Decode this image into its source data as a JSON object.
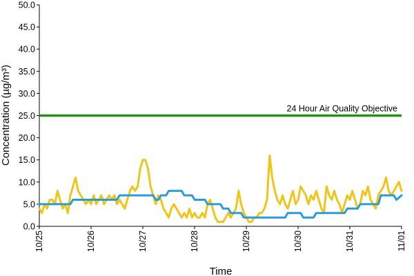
{
  "chart_data": {
    "type": "line",
    "title": "",
    "xlabel": "Time",
    "ylabel": "Concentration (µg/m³)",
    "ylim": [
      0,
      50
    ],
    "yticks": [
      "0.0",
      "5.0",
      "10.0",
      "15.0",
      "20.0",
      "25.0",
      "30.0",
      "35.0",
      "40.0",
      "45.0",
      "50.0"
    ],
    "xlim": [
      0,
      7
    ],
    "xticks": [
      "10/25",
      "10/26",
      "10/27",
      "10/28",
      "10/29",
      "10/30",
      "10/31",
      "11/01"
    ],
    "grid": false,
    "legend": "none",
    "objective": {
      "label": "24 Hour Air Quality Objective",
      "value": 25,
      "color": "#2e8b1e"
    },
    "series": [
      {
        "color": "#f0c419",
        "x": [
          0.0,
          0.05,
          0.1,
          0.15,
          0.2,
          0.25,
          0.3,
          0.35,
          0.4,
          0.45,
          0.5,
          0.55,
          0.6,
          0.65,
          0.7,
          0.75,
          0.8,
          0.85,
          0.9,
          0.95,
          1.0,
          1.05,
          1.1,
          1.15,
          1.2,
          1.25,
          1.3,
          1.35,
          1.4,
          1.45,
          1.5,
          1.55,
          1.6,
          1.65,
          1.7,
          1.75,
          1.8,
          1.85,
          1.9,
          1.95,
          2.0,
          2.05,
          2.1,
          2.15,
          2.2,
          2.25,
          2.3,
          2.35,
          2.4,
          2.45,
          2.5,
          2.55,
          2.6,
          2.65,
          2.7,
          2.75,
          2.8,
          2.85,
          2.9,
          2.95,
          3.0,
          3.05,
          3.1,
          3.15,
          3.2,
          3.25,
          3.3,
          3.35,
          3.4,
          3.45,
          3.5,
          3.55,
          3.6,
          3.65,
          3.7,
          3.75,
          3.8,
          3.85,
          3.9,
          3.95,
          4.0,
          4.05,
          4.1,
          4.15,
          4.2,
          4.25,
          4.3,
          4.35,
          4.4,
          4.45,
          4.5,
          4.55,
          4.6,
          4.65,
          4.7,
          4.75,
          4.8,
          4.85,
          4.9,
          4.95,
          5.0,
          5.05,
          5.1,
          5.15,
          5.2,
          5.25,
          5.3,
          5.35,
          5.4,
          5.45,
          5.5,
          5.55,
          5.6,
          5.65,
          5.7,
          5.75,
          5.8,
          5.85,
          5.9,
          5.95,
          6.0,
          6.05,
          6.1,
          6.15,
          6.2,
          6.25,
          6.3,
          6.35,
          6.4,
          6.45,
          6.5,
          6.55,
          6.6,
          6.65,
          6.7,
          6.75,
          6.8,
          6.85,
          6.9,
          6.95,
          7.0
        ],
        "y": [
          4,
          3,
          5,
          4,
          6,
          6,
          5,
          8,
          6,
          4,
          5,
          3,
          7,
          9,
          11,
          8,
          7,
          6,
          5,
          6,
          5,
          7,
          5,
          6,
          7,
          5,
          6,
          7,
          6,
          7,
          5,
          6,
          5,
          4,
          6,
          8,
          9,
          8,
          9,
          13,
          15,
          15,
          13,
          9,
          7,
          5,
          7,
          6,
          4,
          3,
          2,
          4,
          5,
          4,
          3,
          2,
          3,
          2,
          4,
          2,
          3,
          2,
          2,
          3,
          2,
          5,
          6,
          4,
          2,
          1,
          1,
          1,
          2,
          3,
          2,
          3,
          4,
          8,
          5,
          3,
          2,
          1,
          1,
          2,
          2,
          3,
          3,
          4,
          6,
          16,
          11,
          8,
          6,
          5,
          7,
          5,
          4,
          6,
          8,
          5,
          6,
          9,
          8,
          7,
          5,
          7,
          6,
          8,
          6,
          4,
          3,
          9,
          7,
          6,
          8,
          6,
          5,
          3,
          5,
          7,
          6,
          8,
          6,
          4,
          5,
          8,
          7,
          9,
          6,
          5,
          4,
          7,
          8,
          9,
          11,
          8,
          7,
          8,
          9,
          10,
          8
        ]
      },
      {
        "color": "#2a9bd9",
        "x": [
          0.0,
          0.6,
          0.65,
          1.5,
          1.55,
          2.2,
          2.25,
          2.3,
          2.35,
          2.45,
          2.5,
          2.75,
          2.8,
          2.95,
          3.0,
          3.2,
          3.25,
          3.5,
          3.55,
          3.65,
          3.7,
          3.9,
          3.95,
          4.05,
          4.1,
          4.4,
          4.45,
          4.75,
          4.8,
          5.05,
          5.1,
          5.3,
          5.35,
          5.9,
          5.95,
          6.15,
          6.2,
          6.55,
          6.6,
          6.85,
          6.9,
          7.0
        ],
        "y": [
          5,
          5,
          6,
          6,
          7,
          7,
          6,
          6,
          7,
          7,
          8,
          8,
          7,
          7,
          6,
          6,
          5,
          5,
          4,
          4,
          3,
          3,
          2,
          2,
          2,
          2,
          2,
          2,
          3,
          3,
          2,
          2,
          3,
          3,
          4,
          4,
          5,
          5,
          7,
          7,
          6,
          7
        ]
      }
    ]
  }
}
